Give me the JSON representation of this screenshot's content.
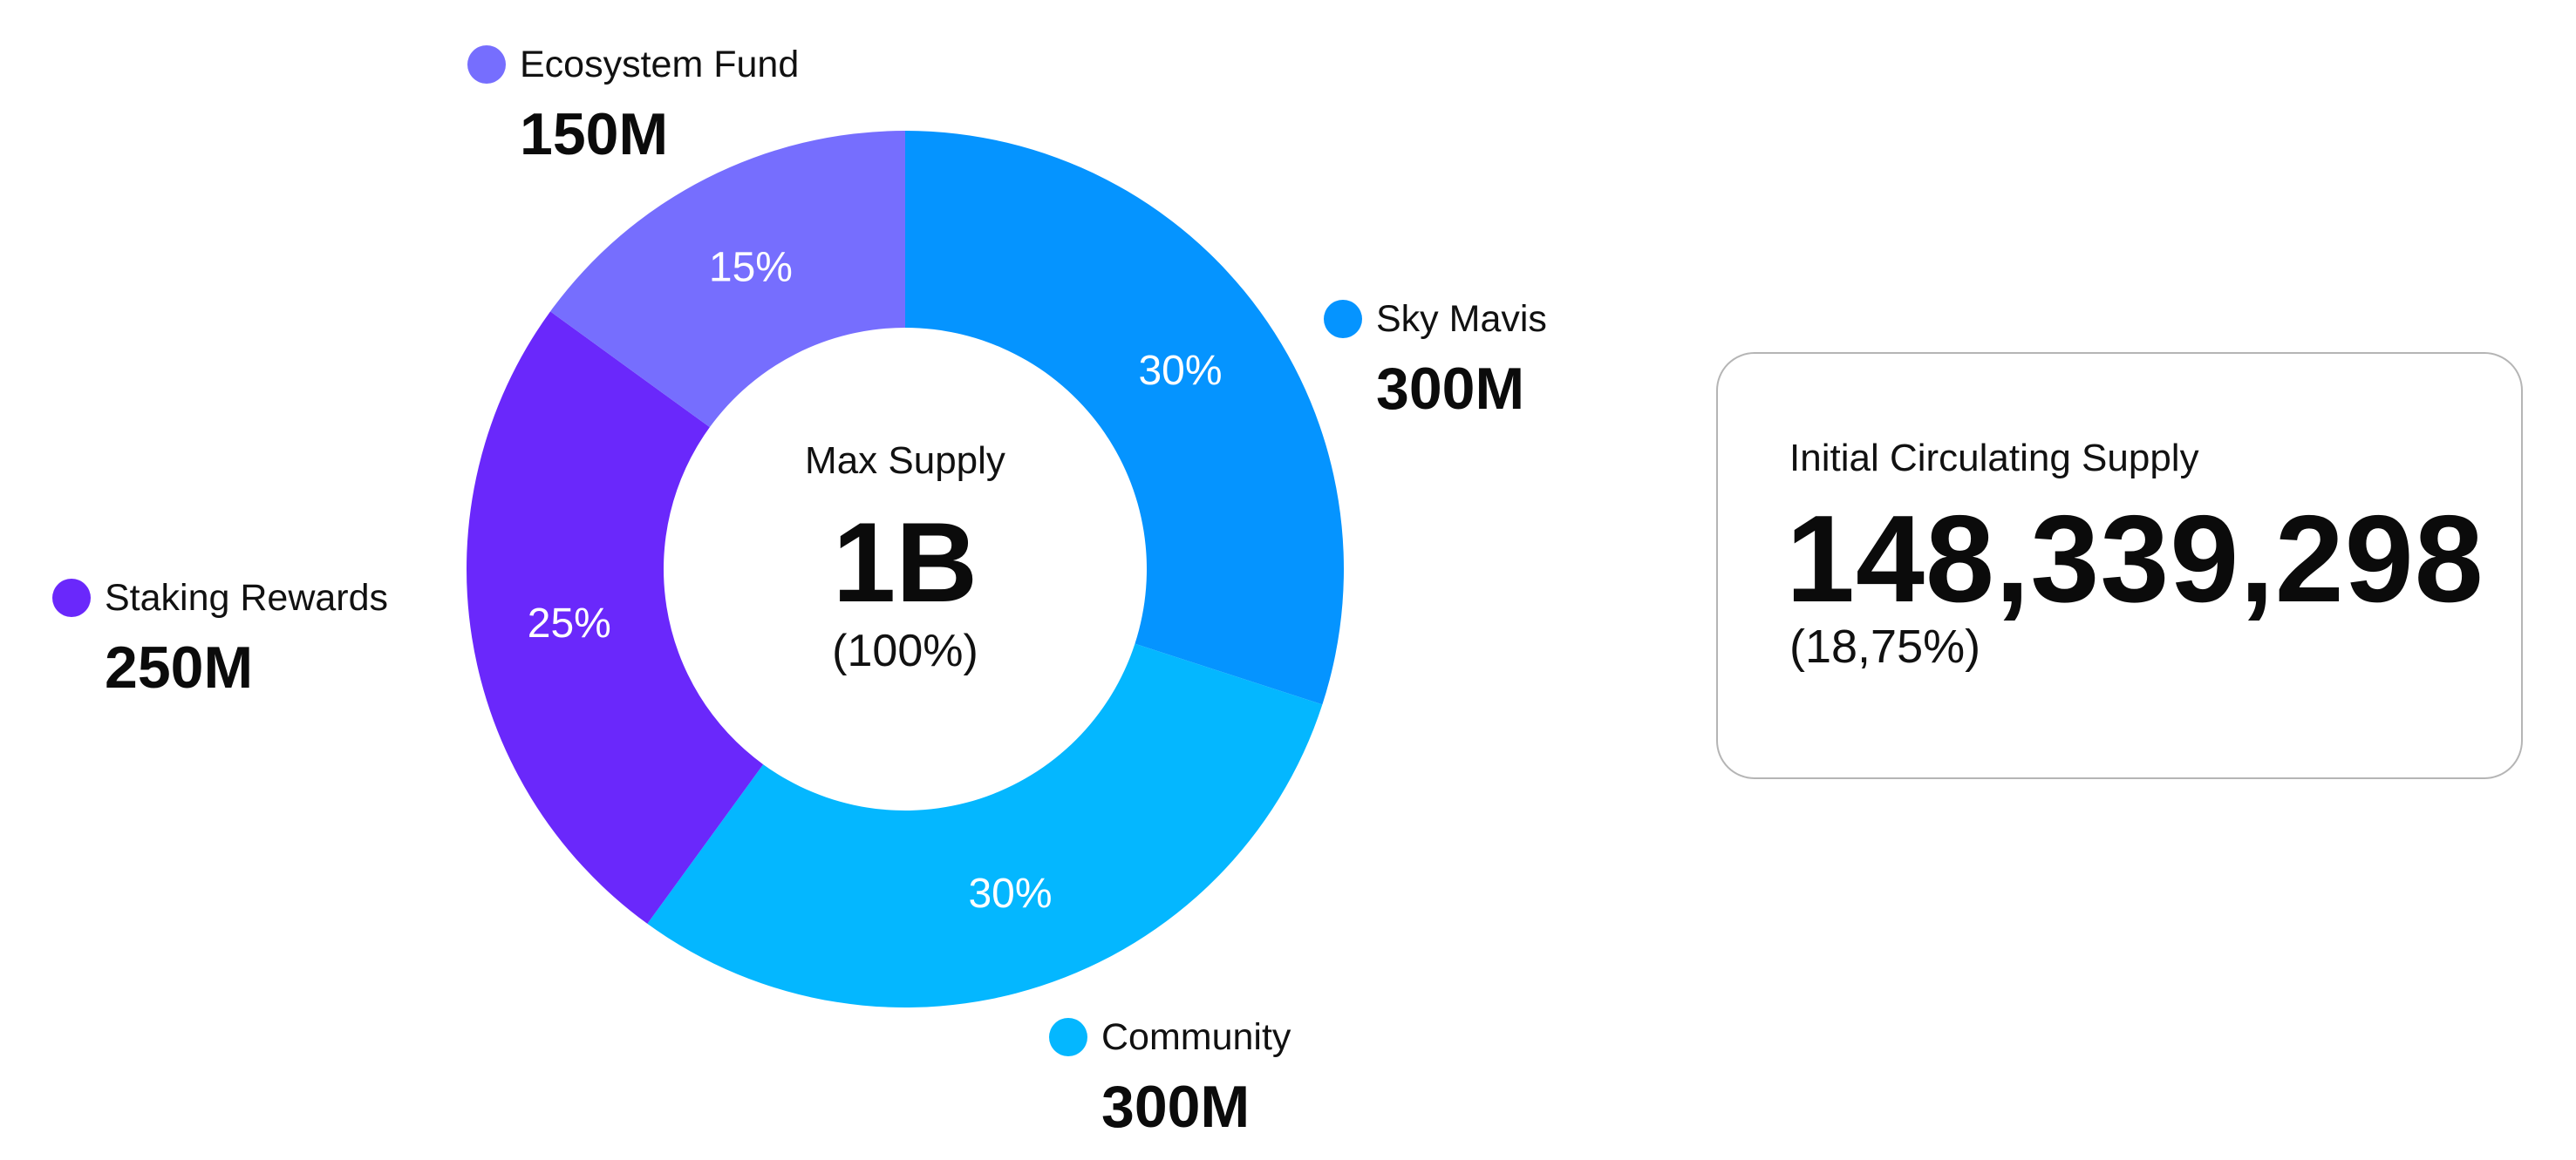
{
  "chart_data": {
    "type": "pie",
    "style": "donut",
    "center": {
      "label": "Max Supply",
      "value": "1B",
      "percent": "(100%)"
    },
    "slices": [
      {
        "name": "Sky Mavis",
        "value": 300,
        "percent": 30,
        "percent_label": "30%",
        "amount_label": "300M",
        "color": "#0594ff"
      },
      {
        "name": "Community",
        "value": 300,
        "percent": 30,
        "percent_label": "30%",
        "amount_label": "300M",
        "color": "#04b7ff"
      },
      {
        "name": "Staking Rewards",
        "value": 250,
        "percent": 25,
        "percent_label": "25%",
        "amount_label": "250M",
        "color": "#6a28fb"
      },
      {
        "name": "Ecosystem Fund",
        "value": 150,
        "percent": 15,
        "percent_label": "15%",
        "amount_label": "150M",
        "color": "#766efe"
      }
    ],
    "unit": "M"
  },
  "circulating": {
    "label": "Initial Circulating Supply",
    "value": "148,339,298",
    "percent": "(18,75%)"
  }
}
